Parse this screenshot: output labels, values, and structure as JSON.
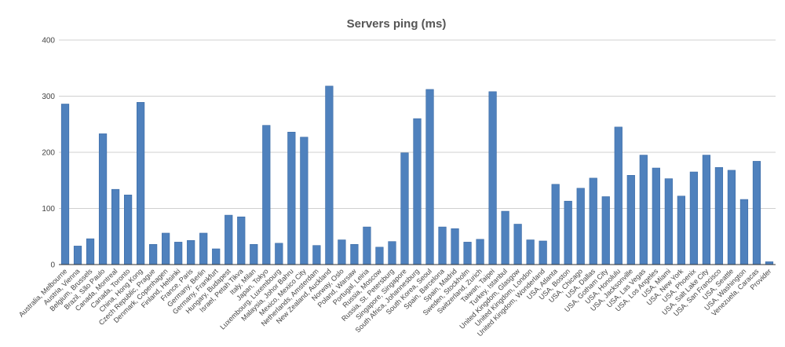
{
  "chart_data": {
    "type": "bar",
    "title": "Servers ping (ms)",
    "xlabel": "",
    "ylabel": "",
    "ylim": [
      0,
      400
    ],
    "yticks": [
      0,
      100,
      200,
      300,
      400
    ],
    "grid": true,
    "legend": "none",
    "colors": {
      "bar": "#4f81bd",
      "bar_edge": "#3a6aa5"
    },
    "categories": [
      "Australia, Melbourne",
      "Austria, Vienna",
      "Belgium, Brussels",
      "Brazil, São Paulo",
      "Canada, Montreal",
      "Canada, Toronto",
      "China, Hong Kong",
      "Czech Republic, Prague",
      "Denmark, Copenhagen",
      "Finland, Helsinki",
      "France, Paris",
      "Germany, Berlin",
      "Germany, Frankfurt",
      "Hungary, Budapest",
      "Israel, Petah Tikva",
      "Italy, Milan",
      "Japan, Tokyo",
      "Luxembourg, Luxembourg",
      "Malaysia, Johor Bahru",
      "Mexico, Mexico City",
      "Netherlands, Amsterdam",
      "New Zealand, Auckland",
      "Norway, Oslo",
      "Poland, Warsaw",
      "Portugal, Leiria",
      "Russia, Moscow",
      "Russia, St. Petersburg",
      "Singapore, Singapore",
      "South Africa, Johannesburg",
      "South Korea, Seoul",
      "Spain, Barcelona",
      "Spain, Madrid",
      "Sweden, Stockholm",
      "Switzerland, Zurich",
      "Taiwan, Taipei",
      "Turkey, Istanbul",
      "United Kingdom, Glasgow",
      "United Kingdom, London",
      "United Kingdom, Wonderland",
      "USA, Atlanta",
      "USA, Boston",
      "USA, Chicago",
      "USA, Dallas",
      "USA, Gotham City",
      "USA, Honolulu",
      "USA, Jacksonville",
      "USA, Las Vegas",
      "USA, Los Angeles",
      "USA, Miami",
      "USA, New York",
      "USA, Phoenix",
      "USA, Salt Lake City",
      "USA, San Francisco",
      "USA, Seattle",
      "USA, Washington",
      "Venezuela, Caracas",
      "Provider"
    ],
    "values": [
      286,
      33,
      46,
      233,
      134,
      124,
      289,
      36,
      56,
      40,
      43,
      56,
      28,
      88,
      85,
      36,
      248,
      38,
      236,
      227,
      34,
      318,
      44,
      36,
      67,
      31,
      41,
      199,
      260,
      312,
      67,
      64,
      40,
      45,
      308,
      95,
      72,
      44,
      42,
      143,
      113,
      136,
      154,
      121,
      245,
      159,
      195,
      172,
      153,
      122,
      165,
      195,
      173,
      168,
      116,
      184,
      5
    ]
  }
}
